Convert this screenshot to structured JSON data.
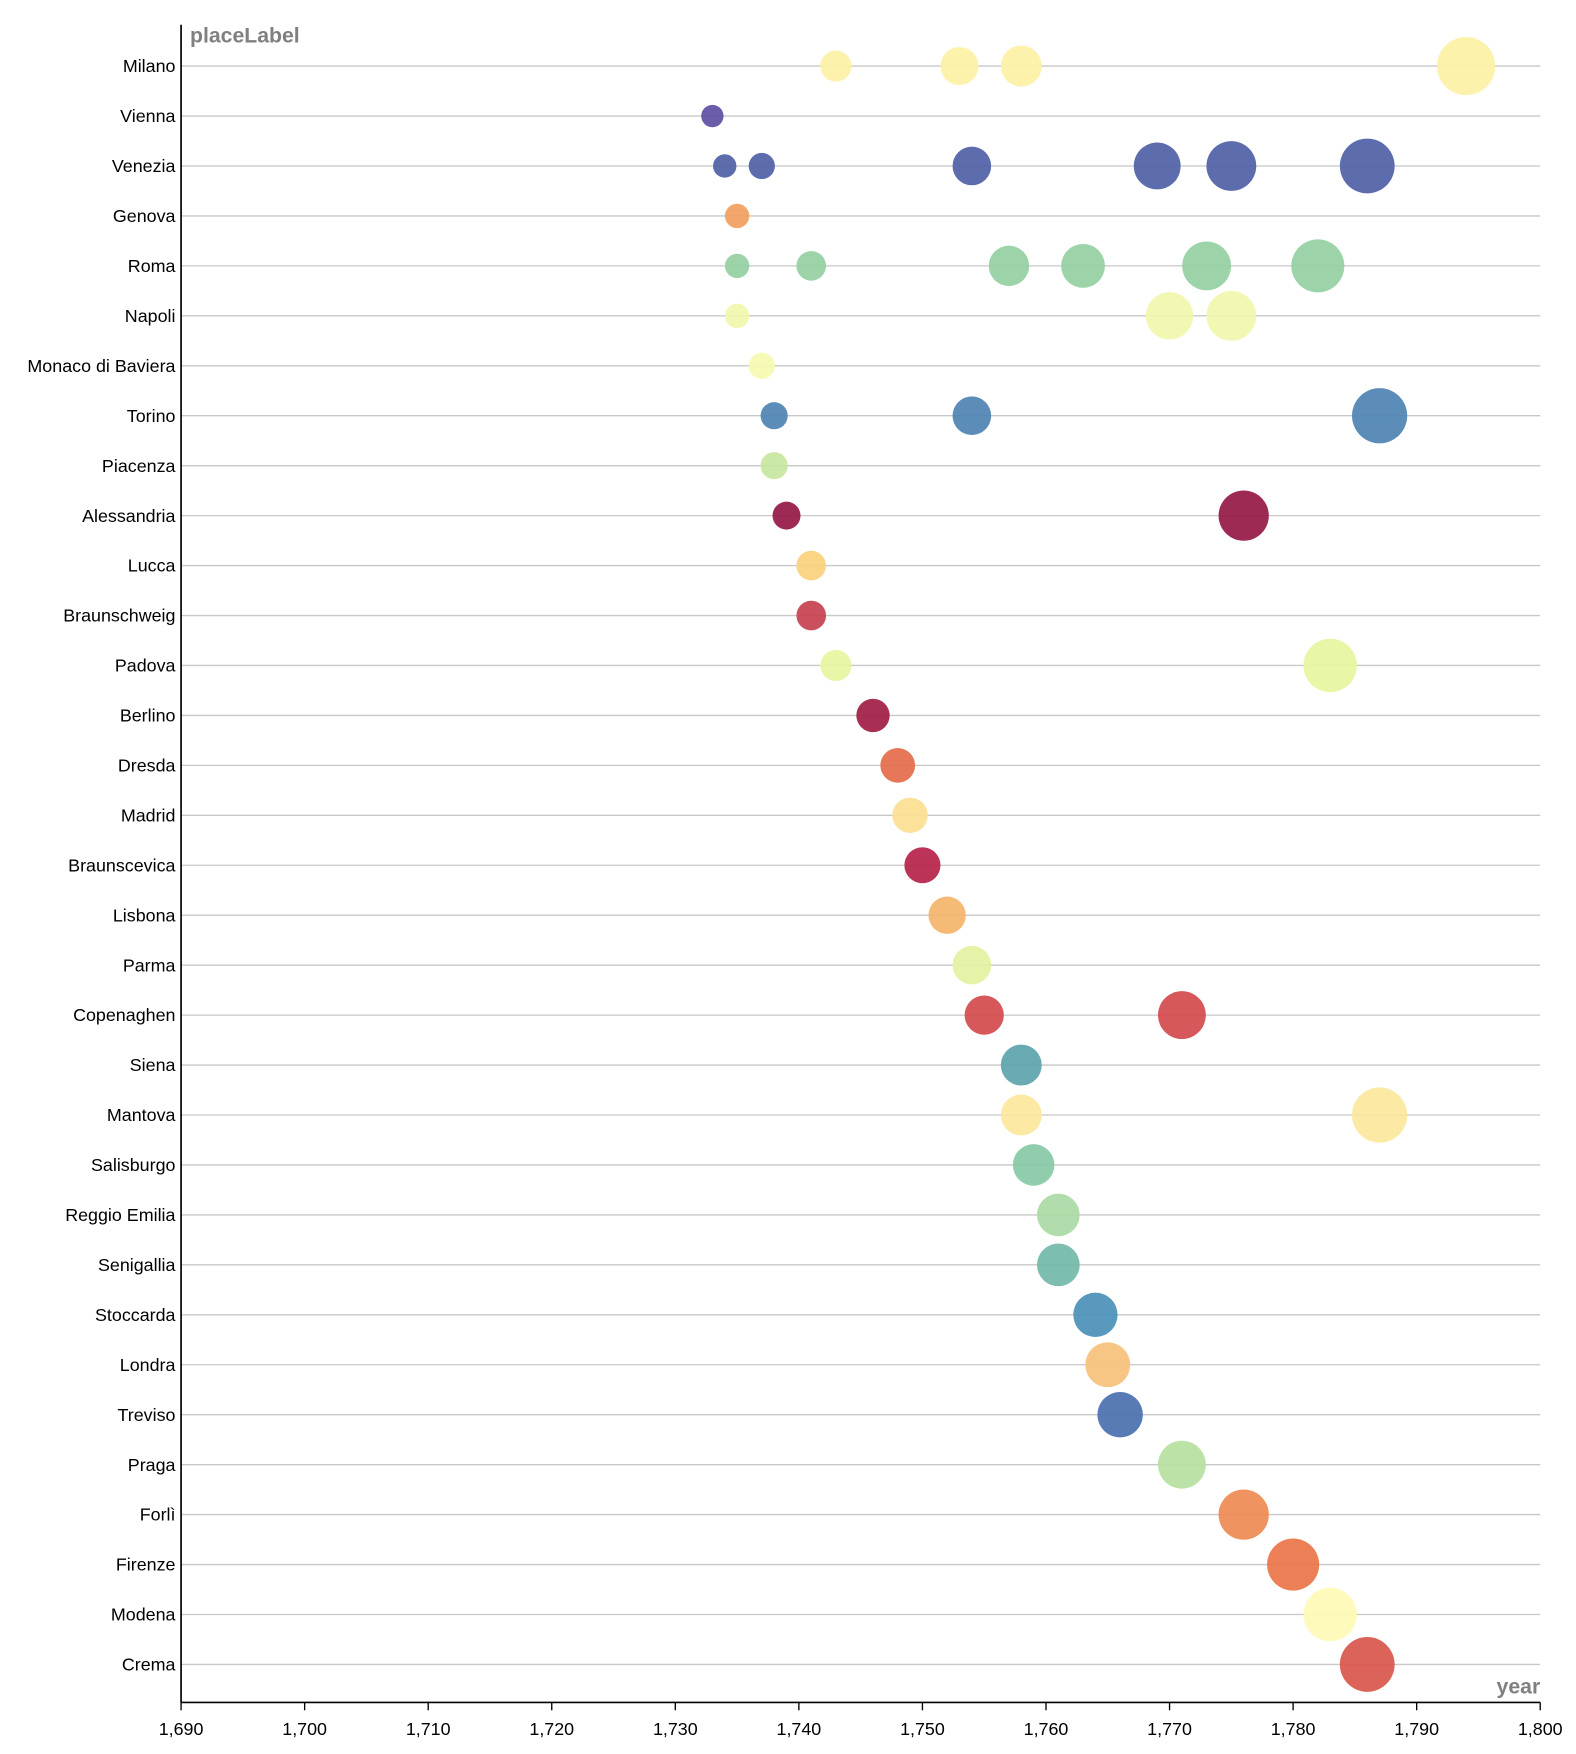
{
  "chart_data": {
    "type": "scatter",
    "ylabel": "placeLabel",
    "xlabel": "year",
    "xlim": [
      1690,
      1800
    ],
    "x_ticks": [
      "1,690",
      "1,700",
      "1,710",
      "1,720",
      "1,730",
      "1,740",
      "1,750",
      "1,760",
      "1,770",
      "1,780",
      "1,790",
      "1,800"
    ],
    "x_tick_values": [
      1690,
      1700,
      1710,
      1720,
      1730,
      1740,
      1750,
      1760,
      1770,
      1780,
      1790,
      1800
    ],
    "grid": "horizontal",
    "size_encodes": "year",
    "color_scheme": "spectral",
    "categories": [
      {
        "name": "Milano",
        "color": "#fdf1a5",
        "years": [
          1743,
          1753,
          1758,
          1794
        ]
      },
      {
        "name": "Vienna",
        "color": "#5e4fa2",
        "years": [
          1733
        ]
      },
      {
        "name": "Venezia",
        "color": "#4f5fa6",
        "years": [
          1734,
          1737,
          1754,
          1769,
          1775,
          1786
        ]
      },
      {
        "name": "Genova",
        "color": "#f29e5e",
        "years": [
          1735
        ]
      },
      {
        "name": "Roma",
        "color": "#95cfa2",
        "years": [
          1735,
          1741,
          1757,
          1763,
          1773,
          1782
        ]
      },
      {
        "name": "Napoli",
        "color": "#f1f7ae",
        "years": [
          1735,
          1770,
          1775
        ]
      },
      {
        "name": "Monaco di Baviera",
        "color": "#f6f9b0",
        "years": [
          1737
        ]
      },
      {
        "name": "Torino",
        "color": "#4e83b3",
        "years": [
          1738,
          1754,
          1787
        ]
      },
      {
        "name": "Piacenza",
        "color": "#c8e6a0",
        "years": [
          1738
        ]
      },
      {
        "name": "Alessandria",
        "color": "#951846",
        "years": [
          1739,
          1776
        ]
      },
      {
        "name": "Lucca",
        "color": "#fad17c",
        "years": [
          1741
        ]
      },
      {
        "name": "Braunschweig",
        "color": "#c6414f",
        "years": [
          1741
        ]
      },
      {
        "name": "Padova",
        "color": "#e6f59f",
        "years": [
          1743,
          1783
        ]
      },
      {
        "name": "Berlino",
        "color": "#a11c45",
        "years": [
          1746
        ]
      },
      {
        "name": "Dresda",
        "color": "#e46c4b",
        "years": [
          1748
        ]
      },
      {
        "name": "Madrid",
        "color": "#fbde91",
        "years": [
          1749
        ]
      },
      {
        "name": "Braunscevica",
        "color": "#b52248",
        "years": [
          1750
        ]
      },
      {
        "name": "Lisbona",
        "color": "#f4b469",
        "years": [
          1752
        ]
      },
      {
        "name": "Parma",
        "color": "#e2f2a0",
        "years": [
          1754
        ]
      },
      {
        "name": "Copenaghen",
        "color": "#d24a4c",
        "years": [
          1755,
          1771
        ]
      },
      {
        "name": "Siena",
        "color": "#5da4ad",
        "years": [
          1758
        ]
      },
      {
        "name": "Mantova",
        "color": "#fce79c",
        "years": [
          1758,
          1787
        ]
      },
      {
        "name": "Salisburgo",
        "color": "#86c9a5",
        "years": [
          1759
        ]
      },
      {
        "name": "Reggio Emilia",
        "color": "#a9daa4",
        "years": [
          1761
        ]
      },
      {
        "name": "Senigallia",
        "color": "#72b9a9",
        "years": [
          1761
        ]
      },
      {
        "name": "Stoccarda",
        "color": "#4a90b7",
        "years": [
          1764
        ]
      },
      {
        "name": "Londra",
        "color": "#f6c17b",
        "years": [
          1765
        ]
      },
      {
        "name": "Treviso",
        "color": "#4a70b0",
        "years": [
          1766
        ]
      },
      {
        "name": "Praga",
        "color": "#b7e0a0",
        "years": [
          1771
        ]
      },
      {
        "name": "Forlì",
        "color": "#ee8a52",
        "years": [
          1776
        ]
      },
      {
        "name": "Firenze",
        "color": "#ea7446",
        "years": [
          1780
        ]
      },
      {
        "name": "Modena",
        "color": "#fefab6",
        "years": [
          1783
        ]
      },
      {
        "name": "Crema",
        "color": "#d9564b",
        "years": [
          1786
        ]
      }
    ]
  }
}
